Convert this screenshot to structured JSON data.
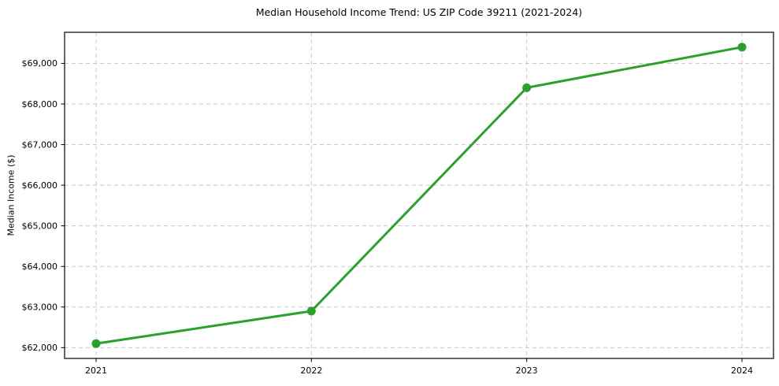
{
  "chart_data": {
    "type": "line",
    "title": "Median Household Income Trend: US ZIP Code 39211 (2021-2024)",
    "ylabel": "Median Income ($)",
    "xlabel": "",
    "categories": [
      "2021",
      "2022",
      "2023",
      "2024"
    ],
    "values": [
      62100,
      62900,
      68400,
      69400
    ],
    "yticks": [
      62000,
      63000,
      64000,
      65000,
      66000,
      67000,
      68000,
      69000
    ],
    "ytick_prefix": "$",
    "ylim": [
      61735,
      69765
    ],
    "grid": true,
    "grid_style": "dashed",
    "legend_position": "none",
    "line_color": "#2ca02c",
    "marker": "circle",
    "background_color": "#ffffff"
  }
}
